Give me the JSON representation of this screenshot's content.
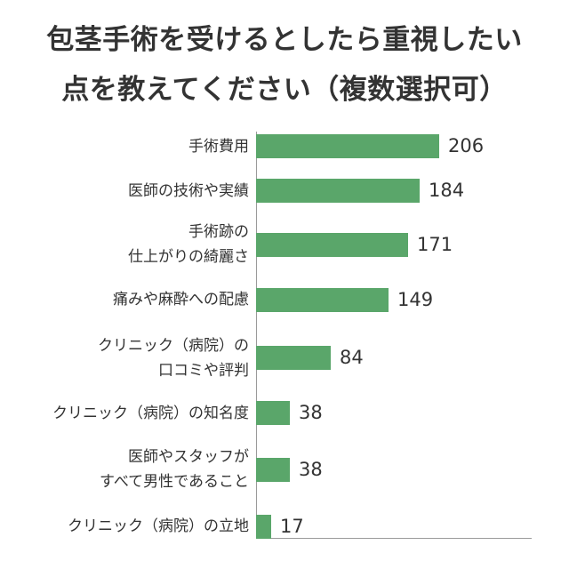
{
  "colors": {
    "background": "#ffffff",
    "text": "#333333",
    "axis": "#9a9a9a"
  },
  "chart_data": {
    "type": "bar",
    "orientation": "horizontal",
    "title": "包茎手術を受けるとしたら重視したい\n点を教えてください（複数選択可）",
    "categories": [
      "手術費用",
      "医師の技術や実績",
      "手術跡の\n仕上がりの綺麗さ",
      "痛みや麻酔への配慮",
      "クリニック（病院）の\n口コミや評判",
      "クリニック（病院）の知名度",
      "医師やスタッフが\nすべて男性であること",
      "クリニック（病院）の立地"
    ],
    "values": [
      206,
      184,
      171,
      149,
      84,
      38,
      38,
      17
    ],
    "xlabel": "",
    "ylabel": "",
    "xlim": [
      0,
      310
    ],
    "grid": false,
    "legend": "none",
    "data_labels": true,
    "bar_color": "#5aa66a"
  }
}
